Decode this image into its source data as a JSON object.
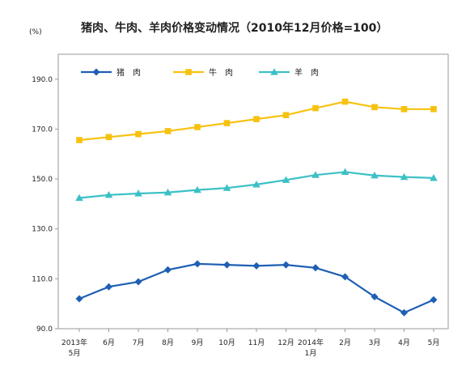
{
  "chart_data": {
    "type": "line",
    "title": "猪肉、牛肉、羊肉价格变动情况（2010年12月价格=100）",
    "ylabel": "(%)",
    "xlabel": "",
    "ylim": [
      90,
      200
    ],
    "yticks": [
      "90.0",
      "110.0",
      "130.0",
      "150.0",
      "170.0",
      "190.0"
    ],
    "categories": [
      [
        "2013年",
        "5月"
      ],
      [
        "6月"
      ],
      [
        "7月"
      ],
      [
        "8月"
      ],
      [
        "9月"
      ],
      [
        "10月"
      ],
      [
        "11月"
      ],
      [
        "12月"
      ],
      [
        "2014年",
        "1月"
      ],
      [
        "2月"
      ],
      [
        "3月"
      ],
      [
        "4月"
      ],
      [
        "5月"
      ]
    ],
    "legend_placement": "top-left",
    "grid": false,
    "series": [
      {
        "name": "猪　肉",
        "color": "#1f5fb4",
        "marker": "diamond",
        "values": [
          102.0,
          106.8,
          108.8,
          113.6,
          116.0,
          115.6,
          115.2,
          115.6,
          114.4,
          110.8,
          102.8,
          96.4,
          101.6
        ]
      },
      {
        "name": "牛　肉",
        "color": "#f7c20f",
        "marker": "square",
        "values": [
          165.6,
          166.8,
          168.0,
          169.2,
          170.8,
          172.4,
          174.0,
          175.6,
          178.4,
          181.0,
          178.8,
          178.0,
          178.0
        ]
      },
      {
        "name": "羊　肉",
        "color": "#3cc0c6",
        "marker": "triangle",
        "values": [
          142.4,
          143.6,
          144.2,
          144.6,
          145.6,
          146.4,
          147.8,
          149.6,
          151.6,
          152.8,
          151.4,
          150.8,
          150.4
        ]
      }
    ]
  }
}
